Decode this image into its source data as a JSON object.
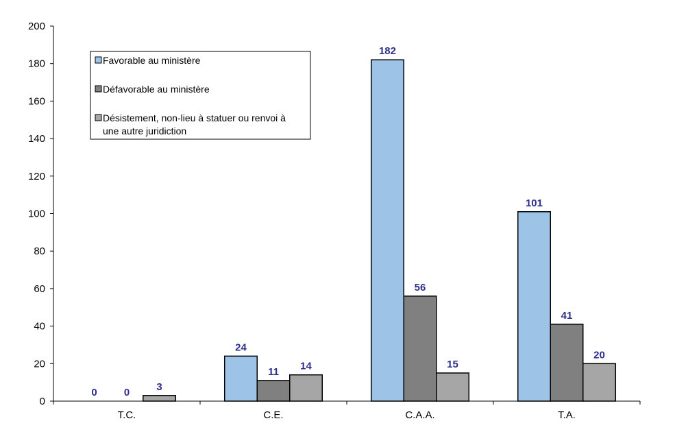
{
  "chart_data": {
    "type": "bar",
    "categories": [
      "T.C.",
      "C.E.",
      "C.A.A.",
      "T.A."
    ],
    "series": [
      {
        "name": "Favorable au ministère",
        "values": [
          0,
          24,
          182,
          101
        ],
        "color": "#9dc3e6"
      },
      {
        "name": "Défavorable au ministère",
        "values": [
          0,
          11,
          56,
          41
        ],
        "color": "#808080"
      },
      {
        "name": "Désistement, non-lieu à statuer ou renvoi à une autre juridiction",
        "values": [
          3,
          14,
          15,
          20
        ],
        "color": "#a6a6a6"
      }
    ],
    "ylim": [
      0,
      200
    ],
    "yticks": [
      0,
      20,
      40,
      60,
      80,
      100,
      120,
      140,
      160,
      180,
      200
    ],
    "title": "",
    "xlabel": "",
    "ylabel": "",
    "grid": false,
    "legend_position": "top-left",
    "legend_lines": [
      [
        "Favorable au ministère"
      ],
      [
        "Défavorable au ministère"
      ],
      [
        "Désistement, non-lieu à statuer ou renvoi à",
        "une autre juridiction"
      ]
    ],
    "label_color": "#2e2e8c"
  }
}
